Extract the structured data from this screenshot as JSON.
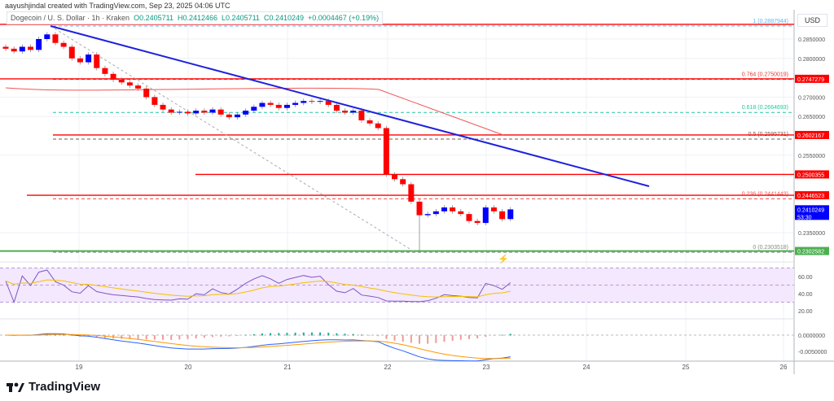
{
  "header": {
    "credit": "aayushjindal created with TradingView.com, Sep 23, 2025 04:06 UTC",
    "symbol": "Dogecoin / U. S. Dollar · 1h · Kraken",
    "open": "O0.2405711",
    "high": "H0.2412466",
    "low": "L0.2405711",
    "close": "C0.2410249",
    "change": "+0.0004467 (+0.19%)"
  },
  "currency": "USD",
  "logo": "TradingView",
  "colors": {
    "up": "#0000ff",
    "down": "#ff0000",
    "trendline": "#1e22dd",
    "ma": "#f05555",
    "support": "#4caf50",
    "rsi": "#7e57c2",
    "rsi_ma": "#f5c000",
    "macd": "#2962ff",
    "signal": "#ff9800"
  },
  "chart_data": {
    "type": "candlestick",
    "interval_hours": 2,
    "start": "Sep 18 06:00",
    "closes": [
      0.2825,
      0.2818,
      0.283,
      0.2822,
      0.285,
      0.2862,
      0.284,
      0.283,
      0.28,
      0.279,
      0.281,
      0.2775,
      0.276,
      0.2745,
      0.2738,
      0.273,
      0.2722,
      0.27,
      0.268,
      0.2668,
      0.266,
      0.2662,
      0.2658,
      0.2665,
      0.266,
      0.2668,
      0.2655,
      0.2648,
      0.2655,
      0.2665,
      0.2675,
      0.2685,
      0.268,
      0.2672,
      0.268,
      0.2685,
      0.269,
      0.2688,
      0.269,
      0.268,
      0.2665,
      0.266,
      0.2665,
      0.264,
      0.2632,
      0.262,
      0.25,
      0.2488,
      0.2475,
      0.243,
      0.2395,
      0.2398,
      0.2405,
      0.2415,
      0.2405,
      0.2398,
      0.238,
      0.2375,
      0.2415,
      0.2405,
      0.2385,
      0.241
    ],
    "swing_low": 0.2303518,
    "ylim": [
      0.2285,
      0.2895
    ],
    "x_ticks": [
      "19",
      "20",
      "21",
      "22",
      "23",
      "24",
      "25",
      "26"
    ],
    "y_ticks": [
      "0.2850000",
      "0.2800000",
      "0.2700000",
      "0.2650000",
      "0.2550000",
      "0.2350000"
    ],
    "price_tags": [
      {
        "value": 0.2747279,
        "label": "0.2747279",
        "color": "#ff0000"
      },
      {
        "value": 0.2602167,
        "label": "0.2602167",
        "color": "#ff0000"
      },
      {
        "value": 0.2500355,
        "label": "0.2500355",
        "color": "#ff0000"
      },
      {
        "value": 0.2446523,
        "label": "0.2446523",
        "color": "#ff0000"
      },
      {
        "value": 0.2410249,
        "label": "0.2410249",
        "sub": "53:30",
        "color": "#0000ff"
      },
      {
        "value": 0.2302582,
        "label": "0.2302582",
        "color": "#4caf50"
      }
    ],
    "fib_levels": [
      {
        "value": 0.2887944,
        "label": "1 (0.2887944)",
        "color": "#64b5f6"
      },
      {
        "value": 0.2750019,
        "label": "0.764 (0.2750019)",
        "color": "#e53935"
      },
      {
        "value": 0.2664693,
        "label": "0.618 (0.2664693)",
        "color": "#26c6a0"
      },
      {
        "value": 0.2595731,
        "label": "0.5 (0.2595731)",
        "color": "#795548"
      },
      {
        "value": 0.2441443,
        "label": "0.236 (0.2441443)",
        "color": "#ef5350"
      },
      {
        "value": 0.2303518,
        "label": "0 (0.2303518)",
        "color": "#888888"
      }
    ],
    "rsi": {
      "ticks": [
        "60.00",
        "40.00",
        "20.00"
      ],
      "band": [
        30,
        70
      ]
    },
    "macd": {
      "ticks": [
        "0.0000000",
        "-0.0050000"
      ]
    }
  }
}
